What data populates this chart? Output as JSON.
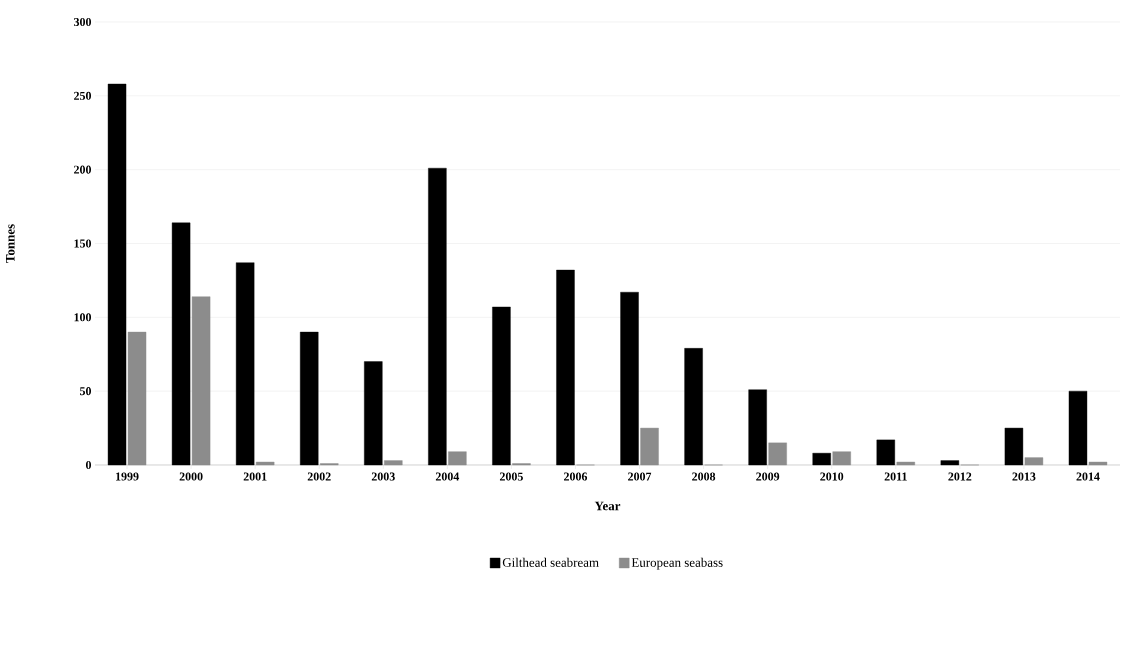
{
  "chart_data": {
    "type": "bar",
    "xlabel": "Year",
    "ylabel": "Tonnes",
    "categories": [
      "1999",
      "2000",
      "2001",
      "2002",
      "2003",
      "2004",
      "2005",
      "2006",
      "2007",
      "2008",
      "2009",
      "2010",
      "2011",
      "2012",
      "2013",
      "2014"
    ],
    "series": [
      {
        "name": "Gilthead seabream",
        "color": "#000000",
        "values": [
          258,
          164,
          137,
          90,
          70,
          201,
          107,
          132,
          117,
          79,
          51,
          8,
          17,
          3,
          25,
          50
        ]
      },
      {
        "name": "European seabass",
        "color": "#8c8c8c",
        "values": [
          90,
          114,
          2,
          1,
          3,
          9,
          1,
          0,
          25,
          0,
          15,
          9,
          2,
          0,
          5,
          2
        ]
      }
    ],
    "ylim": [
      0,
      300
    ],
    "yticks": [
      0,
      50,
      100,
      150,
      200,
      250,
      300
    ],
    "grid": "y",
    "legend": "bottom"
  }
}
